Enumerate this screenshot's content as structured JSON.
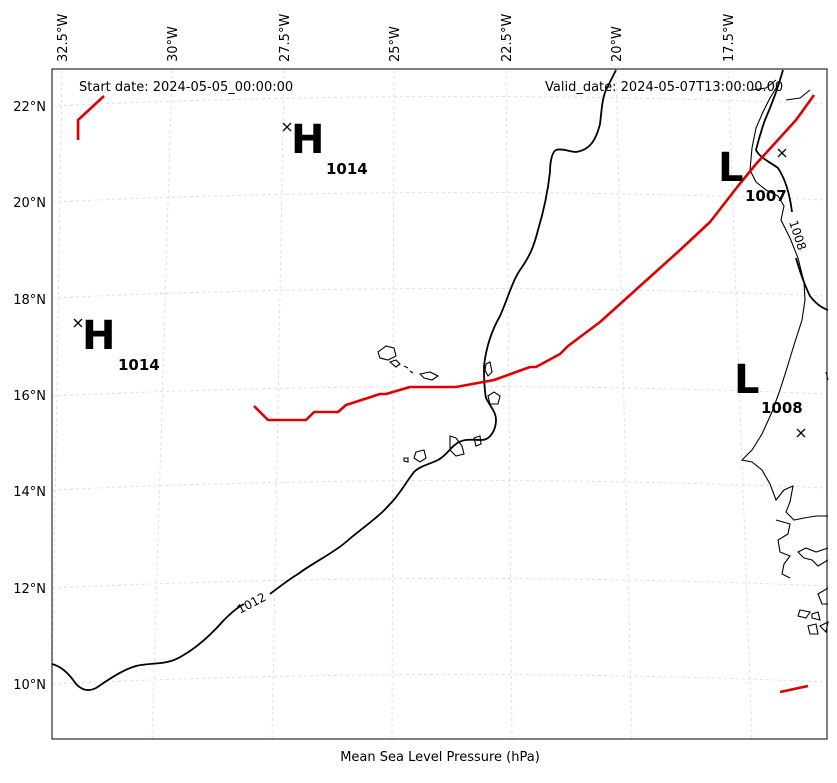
{
  "header": {
    "start_date": "Start date: 2024-05-05_00:00:00",
    "valid_date": "Valid_date: 2024-05-07T13:00:00.00"
  },
  "caption": "Mean Sea Level Pressure (hPa)",
  "axes": {
    "longitude_ticks": [
      "32.5°W",
      "30°W",
      "27.5°W",
      "25°W",
      "22.5°W",
      "20°W",
      "17.5°W"
    ],
    "latitude_ticks": [
      "22°N",
      "20°N",
      "18°N",
      "16°N",
      "14°N",
      "12°N",
      "10°N"
    ]
  },
  "pressure_centers": [
    {
      "type": "H",
      "value": "1014"
    },
    {
      "type": "H",
      "value": "1014"
    },
    {
      "type": "L",
      "value": "1007"
    },
    {
      "type": "L",
      "value": "1008"
    }
  ],
  "contour_labels": [
    "1012",
    "1008"
  ],
  "colors": {
    "front": "#e00000",
    "isobar": "#000000",
    "grid": "#d8d8d8"
  }
}
